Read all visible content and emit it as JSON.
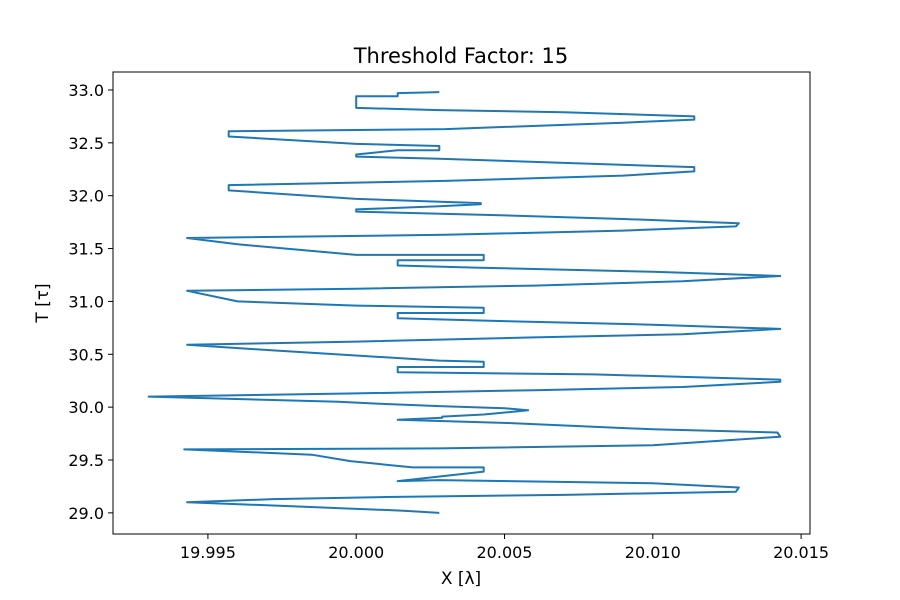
{
  "chart_data": {
    "type": "line",
    "title": "Threshold Factor: 15",
    "xlabel": "X [λ]",
    "ylabel": "T [τ]",
    "xlim": [
      19.9918,
      20.0153
    ],
    "ylim": [
      28.8,
      33.17
    ],
    "xticks": [
      19.995,
      20.0,
      20.005,
      20.01,
      20.015
    ],
    "xtick_labels": [
      "19.995",
      "20.000",
      "20.005",
      "20.010",
      "20.015"
    ],
    "yticks": [
      29.0,
      29.5,
      30.0,
      30.5,
      31.0,
      31.5,
      32.0,
      32.5,
      33.0
    ],
    "ytick_labels": [
      "29.0",
      "29.5",
      "30.0",
      "30.5",
      "31.0",
      "31.5",
      "32.0",
      "32.5",
      "33.0"
    ],
    "grid": false,
    "series": [
      {
        "color": "#1f77b4",
        "x": [
          20.0028,
          20.0016,
          19.9998,
          19.9972,
          19.9943,
          19.9972,
          20.001,
          20.007,
          20.0128,
          20.0129,
          20.01,
          20.0028,
          20.0014,
          20.0043,
          20.0043,
          20.0019,
          19.9998,
          19.9985,
          19.9942,
          20.0028,
          20.01,
          20.0143,
          20.0142,
          20.01,
          20.0051,
          20.0014,
          20.0014,
          20.0029,
          20.0029,
          20.0043,
          20.0058,
          20.005,
          20.0028,
          20.001,
          19.9994,
          19.993,
          20.0,
          20.006,
          20.011,
          20.0143,
          20.0143,
          20.008,
          20.0014,
          20.0014,
          20.0043,
          20.0043,
          20.0028,
          19.997,
          19.9943,
          20.0,
          20.006,
          20.011,
          20.0143,
          20.01,
          20.004,
          20.0014,
          20.0014,
          20.0043,
          20.0043,
          20.0,
          19.996,
          19.9943,
          20.0,
          20.006,
          20.011,
          20.0143,
          20.01,
          20.004,
          20.0014,
          20.0014,
          20.0043,
          20.0043,
          20.0,
          19.996,
          19.9943,
          20.003,
          20.009,
          20.0128,
          20.0129,
          20.009,
          20.0042,
          20.0,
          20.0,
          20.0028,
          20.0042,
          20.0042,
          20.0,
          19.9957,
          19.9957,
          20.003,
          20.009,
          20.0114,
          20.0114,
          20.007,
          20.0028,
          20.0,
          20.0,
          20.0014,
          20.0028,
          20.0028,
          20.0,
          19.9957,
          19.9957,
          20.003,
          20.009,
          20.0114,
          20.0114,
          20.007,
          20.0028,
          20.0,
          20.0,
          20.0014,
          20.0014,
          20.0028
        ],
        "y": [
          29.0,
          29.02,
          29.04,
          29.07,
          29.1,
          29.13,
          29.15,
          29.17,
          29.2,
          29.24,
          29.28,
          29.31,
          29.3,
          29.39,
          29.43,
          29.43,
          29.49,
          29.55,
          29.6,
          29.61,
          29.64,
          29.72,
          29.76,
          29.79,
          29.85,
          29.88,
          29.88,
          29.9,
          29.91,
          29.93,
          29.97,
          29.99,
          30.01,
          30.03,
          30.05,
          30.1,
          30.13,
          30.16,
          30.19,
          30.24,
          30.26,
          30.31,
          30.33,
          30.38,
          30.38,
          30.43,
          30.44,
          30.54,
          30.59,
          30.62,
          30.66,
          30.69,
          30.74,
          30.78,
          30.82,
          30.84,
          30.89,
          30.89,
          30.94,
          30.96,
          31.0,
          31.1,
          31.12,
          31.15,
          31.19,
          31.24,
          31.28,
          31.32,
          31.34,
          31.39,
          31.39,
          31.44,
          31.44,
          31.54,
          31.6,
          31.63,
          31.67,
          31.71,
          31.74,
          31.78,
          31.82,
          31.85,
          31.87,
          31.9,
          31.92,
          31.93,
          31.97,
          32.05,
          32.1,
          32.14,
          32.19,
          32.23,
          32.27,
          32.31,
          32.35,
          32.37,
          32.39,
          32.43,
          32.43,
          32.47,
          32.49,
          32.56,
          32.61,
          32.63,
          32.69,
          32.72,
          32.75,
          32.79,
          32.81,
          32.83,
          32.94,
          32.94,
          32.97,
          32.98
        ]
      }
    ]
  }
}
